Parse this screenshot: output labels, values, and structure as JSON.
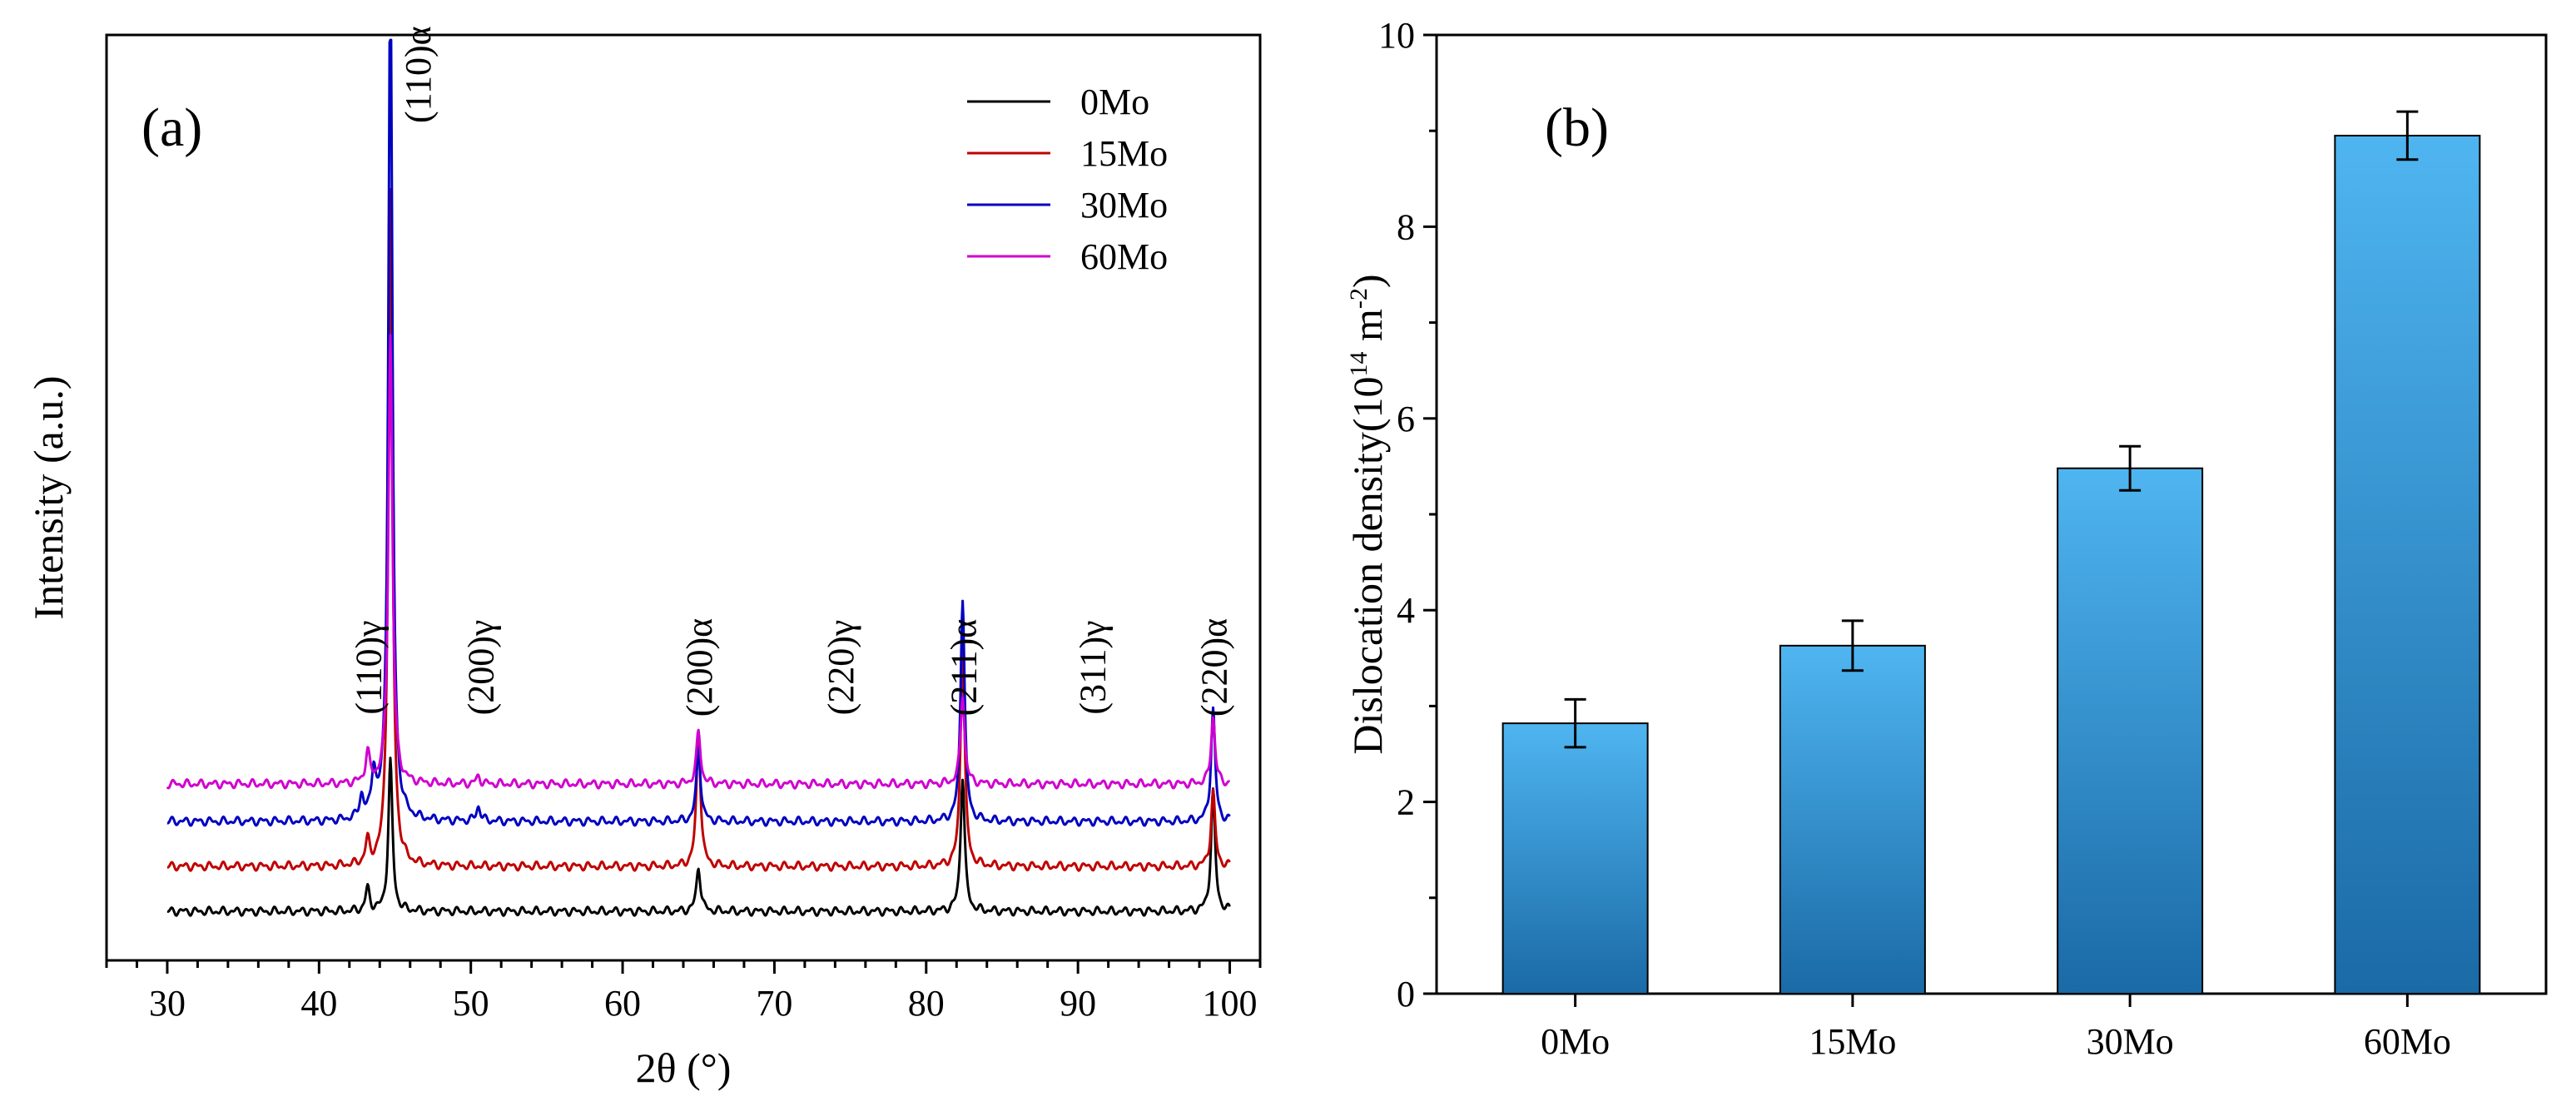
{
  "chart_data": [
    {
      "panel_label": "(a)",
      "type": "line",
      "xlabel": "2θ (°)",
      "ylabel": "Intensity (a.u.)",
      "xlim": [
        26,
        102
      ],
      "ylim": [
        0,
        100
      ],
      "xticks": [
        "30",
        "40",
        "50",
        "60",
        "70",
        "80",
        "90",
        "100"
      ],
      "series": [
        {
          "name": "0Mo",
          "color": "#000000",
          "baseline": 1.0,
          "peaks": [
            {
              "x": 43.2,
              "h": 3
            },
            {
              "x": 44.7,
              "h": 20
            },
            {
              "x": 65.0,
              "h": 6
            },
            {
              "x": 82.4,
              "h": 18
            },
            {
              "x": 98.9,
              "h": 16
            }
          ]
        },
        {
          "name": "15Mo",
          "color": "#c00000",
          "baseline": 7.0,
          "peaks": [
            {
              "x": 43.2,
              "h": 3
            },
            {
              "x": 44.7,
              "h": 90
            },
            {
              "x": 65.0,
              "h": 18
            },
            {
              "x": 82.4,
              "h": 30
            },
            {
              "x": 98.9,
              "h": 10
            }
          ]
        },
        {
          "name": "30Mo",
          "color": "#0000c0",
          "baseline": 13.0,
          "peaks": [
            {
              "x": 42.8,
              "h": 3
            },
            {
              "x": 43.6,
              "h": 6
            },
            {
              "x": 44.7,
              "h": 114
            },
            {
              "x": 50.5,
              "h": 2
            },
            {
              "x": 65.0,
              "h": 10
            },
            {
              "x": 82.4,
              "h": 30
            },
            {
              "x": 98.9,
              "h": 15
            }
          ]
        },
        {
          "name": "60Mo",
          "color": "#d000d0",
          "baseline": 18.0,
          "peaks": [
            {
              "x": 43.2,
              "h": 4
            },
            {
              "x": 44.7,
              "h": 60
            },
            {
              "x": 50.5,
              "h": 1
            },
            {
              "x": 65.0,
              "h": 7
            },
            {
              "x": 82.4,
              "h": 12
            },
            {
              "x": 98.9,
              "h": 9
            }
          ]
        }
      ],
      "annotations": [
        {
          "text": "(110)γ",
          "x": 43.2
        },
        {
          "text": "(110)α",
          "x": 45.9
        },
        {
          "text": "(200)γ",
          "x": 50.6
        },
        {
          "text": "(200)α",
          "x": 65.0
        },
        {
          "text": "(220)γ",
          "x": 74.3
        },
        {
          "text": "(211)α",
          "x": 82.4
        },
        {
          "text": "(311)γ",
          "x": 90.9
        },
        {
          "text": "(220)α",
          "x": 98.9
        }
      ],
      "legend": "top-right"
    },
    {
      "panel_label": "(b)",
      "type": "bar",
      "categories": [
        "0Mo",
        "15Mo",
        "30Mo",
        "60Mo"
      ],
      "values": [
        2.82,
        3.63,
        5.48,
        8.95
      ],
      "errors": [
        0.25,
        0.26,
        0.23,
        0.25
      ],
      "ylabel_main": "Dislocation density(10",
      "ylabel_sup1": "14",
      "ylabel_mid": " m",
      "ylabel_sup2": "-2",
      "ylabel_end": ")",
      "ylim": [
        0,
        10
      ],
      "yticks": [
        "0",
        "2",
        "4",
        "6",
        "8",
        "10"
      ],
      "bar_color_top": "#4fb5f0",
      "bar_color_bottom": "#1a6aa6"
    }
  ]
}
